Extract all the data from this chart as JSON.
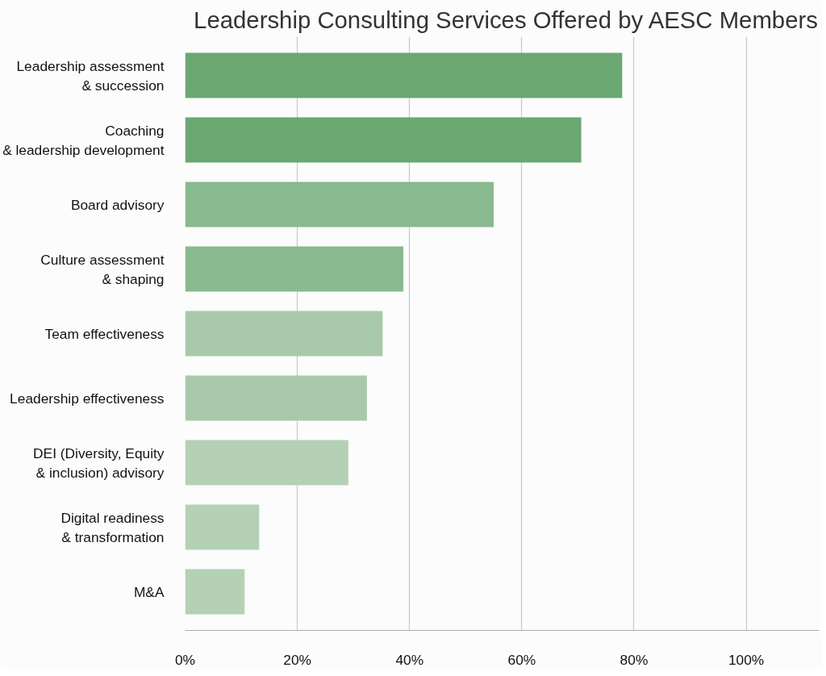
{
  "chart_data": {
    "type": "bar",
    "orientation": "horizontal",
    "title": "Leadership Consulting Services Offered by AESC Members",
    "categories": [
      "Leadership assessment\n& succession",
      "Coaching\n& leadership development",
      "Board advisory",
      "Culture assessment\n& shaping",
      "Team effectiveness",
      "Leadership effectiveness",
      "DEI (Diversity, Equity\n& inclusion) advisory",
      "Digital readiness\n& transformation",
      "M&A"
    ],
    "values": [
      77.9,
      70.6,
      55.0,
      38.9,
      35.2,
      32.4,
      29.1,
      13.2,
      10.6
    ],
    "colors": [
      "#6aa771",
      "#6aa771",
      "#89b98e",
      "#89b98e",
      "#a7c9a9",
      "#a7c9a9",
      "#b4d1b6",
      "#b4d1b6",
      "#b4d1b6"
    ],
    "xlim": [
      0,
      113
    ],
    "xticks": [
      {
        "value": 0,
        "label": "0%"
      },
      {
        "value": 20,
        "label": "20%"
      },
      {
        "value": 40,
        "label": "40%"
      },
      {
        "value": 60,
        "label": "60%"
      },
      {
        "value": 80,
        "label": "80%"
      },
      {
        "value": 100,
        "label": "100%"
      }
    ],
    "grid": "x"
  }
}
